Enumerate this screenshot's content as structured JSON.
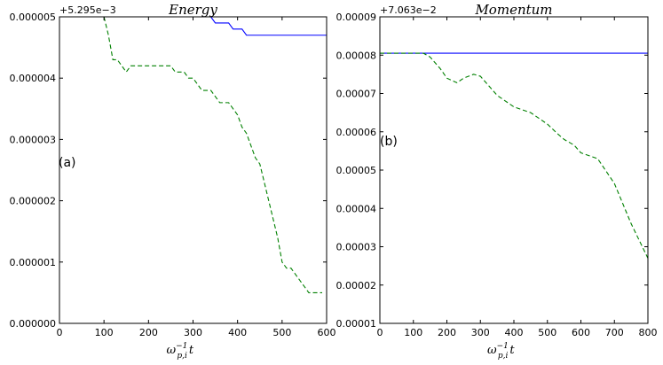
{
  "chart_data": [
    {
      "type": "line",
      "title": "Energy",
      "panel_label": "(a)",
      "offset_label": "+5.295e−3",
      "xlabel": {
        "base": "ω",
        "sub": "p,i",
        "sup": "−1",
        "tail": "t"
      },
      "ylabel": "",
      "xlim": [
        0,
        600
      ],
      "ylim": [
        0,
        5e-06
      ],
      "xticks": [
        "0",
        "100",
        "200",
        "300",
        "400",
        "500",
        "600"
      ],
      "xtick_values": [
        0,
        100,
        200,
        300,
        400,
        500,
        600
      ],
      "yticks": [
        "0.000000",
        "0.000001",
        "0.000002",
        "0.000003",
        "0.000004",
        "0.000005"
      ],
      "ytick_values": [
        0,
        1e-06,
        2e-06,
        3e-06,
        4e-06,
        5e-06
      ],
      "series": [
        {
          "color": "#0000ff",
          "style": "solid",
          "x": [
            340,
            350,
            380,
            390,
            410,
            420,
            430,
            600
          ],
          "y": [
            5e-06,
            4.9e-06,
            4.9e-06,
            4.8e-06,
            4.8e-06,
            4.7e-06,
            4.7e-06,
            4.7e-06
          ]
        },
        {
          "color": "#008000",
          "style": "dashed",
          "x": [
            100,
            110,
            120,
            130,
            140,
            150,
            160,
            170,
            180,
            190,
            200,
            210,
            220,
            230,
            240,
            250,
            260,
            270,
            280,
            290,
            300,
            310,
            320,
            330,
            340,
            350,
            360,
            370,
            380,
            390,
            400,
            410,
            420,
            430,
            440,
            450,
            460,
            470,
            480,
            490,
            500,
            510,
            520,
            530,
            540,
            550,
            560,
            570,
            580,
            590
          ],
          "y": [
            5e-06,
            4.7e-06,
            4.3e-06,
            4.3e-06,
            4.2e-06,
            4.1e-06,
            4.2e-06,
            4.2e-06,
            4.2e-06,
            4.2e-06,
            4.2e-06,
            4.2e-06,
            4.2e-06,
            4.2e-06,
            4.2e-06,
            4.2e-06,
            4.1e-06,
            4.1e-06,
            4.1e-06,
            4e-06,
            4e-06,
            3.9e-06,
            3.8e-06,
            3.8e-06,
            3.8e-06,
            3.7e-06,
            3.6e-06,
            3.6e-06,
            3.6e-06,
            3.5e-06,
            3.4e-06,
            3.2e-06,
            3.1e-06,
            2.9e-06,
            2.7e-06,
            2.6e-06,
            2.3e-06,
            2e-06,
            1.7e-06,
            1.4e-06,
            1e-06,
            9e-07,
            9e-07,
            8e-07,
            7e-07,
            6e-07,
            5e-07,
            5e-07,
            5e-07,
            5e-07
          ]
        }
      ]
    },
    {
      "type": "line",
      "title": "Momentum",
      "panel_label": "(b)",
      "offset_label": "+7.063e−2",
      "xlabel": {
        "base": "ω",
        "sub": "p,i",
        "sup": "−1",
        "tail": "t"
      },
      "ylabel": "",
      "xlim": [
        0,
        800
      ],
      "ylim": [
        1e-05,
        9e-05
      ],
      "xticks": [
        "0",
        "100",
        "200",
        "300",
        "400",
        "500",
        "600",
        "700",
        "800"
      ],
      "xtick_values": [
        0,
        100,
        200,
        300,
        400,
        500,
        600,
        700,
        800
      ],
      "yticks": [
        "0.00001",
        "0.00002",
        "0.00003",
        "0.00004",
        "0.00005",
        "0.00006",
        "0.00007",
        "0.00008",
        "0.00009"
      ],
      "ytick_values": [
        1e-05,
        2e-05,
        3e-05,
        4e-05,
        5e-05,
        6e-05,
        7e-05,
        8e-05,
        9e-05
      ],
      "series": [
        {
          "color": "#0000ff",
          "style": "solid",
          "x": [
            0,
            800
          ],
          "y": [
            8.05e-05,
            8.05e-05
          ]
        },
        {
          "color": "#008000",
          "style": "dashed",
          "x": [
            0,
            50,
            100,
            130,
            150,
            180,
            200,
            230,
            250,
            280,
            300,
            320,
            350,
            400,
            450,
            500,
            530,
            550,
            580,
            600,
            650,
            700,
            750,
            800
          ],
          "y": [
            8.05e-05,
            8.05e-05,
            8.05e-05,
            8.05e-05,
            7.95e-05,
            7.65e-05,
            7.4e-05,
            7.28e-05,
            7.4e-05,
            7.5e-05,
            7.45e-05,
            7.25e-05,
            6.95e-05,
            6.65e-05,
            6.5e-05,
            6.2e-05,
            5.95e-05,
            5.8e-05,
            5.65e-05,
            5.45e-05,
            5.3e-05,
            4.65e-05,
            3.6e-05,
            2.7e-05
          ]
        }
      ]
    }
  ]
}
